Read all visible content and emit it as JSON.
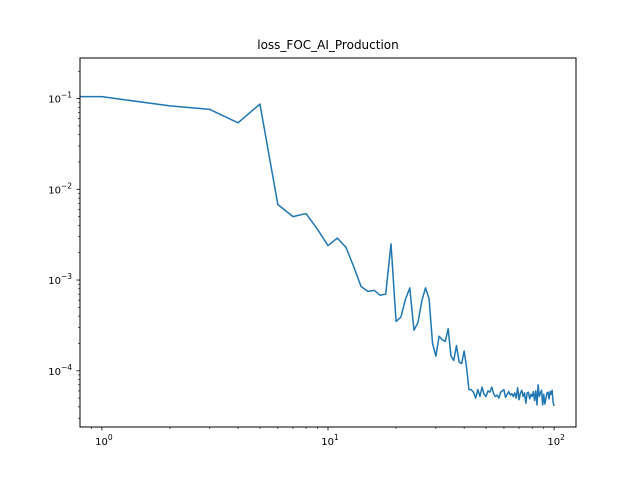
{
  "chart_data": {
    "type": "line",
    "title": "loss_FOC_AI_Production",
    "xlabel": "",
    "ylabel": "",
    "x_scale": "log",
    "y_scale": "log",
    "xlim": [
      0.8,
      125
    ],
    "ylim": [
      2.4e-05,
      0.28
    ],
    "grid": false,
    "legend": "none",
    "x_ticks": [
      {
        "value": 1,
        "base": "10",
        "exp": "0"
      },
      {
        "value": 10,
        "base": "10",
        "exp": "1"
      },
      {
        "value": 100,
        "base": "10",
        "exp": "2"
      }
    ],
    "y_ticks": [
      {
        "value": 0.0001,
        "base": "10",
        "exp": "−4"
      },
      {
        "value": 0.001,
        "base": "10",
        "exp": "−3"
      },
      {
        "value": 0.01,
        "base": "10",
        "exp": "−2"
      },
      {
        "value": 0.1,
        "base": "10",
        "exp": "−1"
      }
    ],
    "colors": {
      "line": "#1f77b4",
      "axes": "#000000"
    },
    "series": [
      {
        "x": [
          0,
          1,
          2,
          3,
          4,
          5,
          6,
          7,
          8,
          9,
          10,
          11,
          12,
          13,
          14,
          15,
          16,
          17,
          18,
          19,
          20,
          21,
          22,
          23,
          24,
          25,
          26,
          27,
          28,
          29,
          30,
          31,
          32,
          33,
          34,
          35,
          36,
          37,
          38,
          39,
          40,
          41,
          42,
          43,
          44,
          45,
          46,
          47,
          48,
          49,
          50,
          51,
          52,
          53,
          54,
          55,
          56,
          57,
          58,
          59,
          60,
          61,
          62,
          63,
          64,
          65,
          66,
          67,
          68,
          69,
          70,
          71,
          72,
          73,
          74,
          75,
          76,
          77,
          78,
          79,
          80,
          81,
          82,
          83,
          84,
          85,
          86,
          87,
          88,
          89,
          90,
          91,
          92,
          93,
          94,
          95,
          96,
          97,
          98,
          99,
          100
        ],
        "y": [
          0.105,
          0.105,
          0.083,
          0.076,
          0.054,
          0.087,
          0.0068,
          0.005,
          0.0054,
          0.0036,
          0.0024,
          0.0029,
          0.0023,
          0.0014,
          0.00085,
          0.00075,
          0.00077,
          0.00068,
          0.0007,
          0.0025,
          0.00035,
          0.00039,
          0.00061,
          0.00082,
          0.00028,
          0.00034,
          0.00059,
          0.00082,
          0.00062,
          0.0002,
          0.000145,
          0.00024,
          0.00022,
          0.00021,
          0.00029,
          0.000145,
          0.00013,
          0.00019,
          0.000125,
          0.00012,
          0.000165,
          0.00011,
          6.2e-05,
          6.2e-05,
          5.8e-05,
          5e-05,
          6.2e-05,
          5.2e-05,
          6.6e-05,
          5.5e-05,
          5.2e-05,
          6e-05,
          5.8e-05,
          6.6e-05,
          5.6e-05,
          5.2e-05,
          5.4e-05,
          5e-05,
          5.8e-05,
          6e-05,
          6.2e-05,
          5.1e-05,
          5.5e-05,
          5.9e-05,
          5.4e-05,
          5.6e-05,
          5.2e-05,
          5.7e-05,
          5e-05,
          6.5e-05,
          4.8e-05,
          5.7e-05,
          6.1e-05,
          5.2e-05,
          5.7e-05,
          4.4e-05,
          5.7e-05,
          5.8e-05,
          4.9e-05,
          5.5e-05,
          5.2e-05,
          5.9e-05,
          4.7e-05,
          6e-05,
          4.2e-05,
          7e-05,
          5.2e-05,
          5.7e-05,
          6.1e-05,
          4.2e-05,
          5.5e-05,
          4.3e-05,
          4.9e-05,
          5.7e-05,
          5.8e-05,
          4.9e-05,
          5.9e-05,
          5.5e-05,
          6.1e-05,
          4.5e-05,
          4.1e-05
        ]
      }
    ]
  }
}
